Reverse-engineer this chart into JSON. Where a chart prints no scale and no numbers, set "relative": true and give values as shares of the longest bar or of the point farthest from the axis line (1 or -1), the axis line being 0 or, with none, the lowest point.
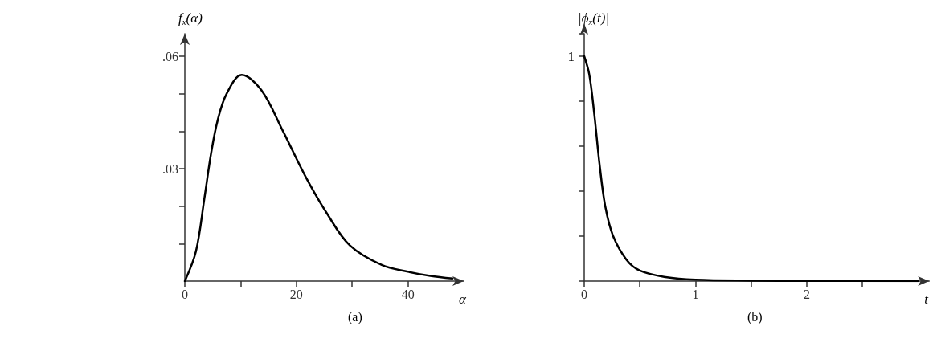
{
  "chart_data": [
    {
      "type": "line",
      "xlabel": "α",
      "ylabel": "f$_{x}$(α)",
      "annotations": [
        "(a)"
      ],
      "xlim": [
        0,
        50
      ],
      "ylim": [
        0,
        0.066
      ],
      "xticks": [
        0,
        {
          "value": 10,
          "label": null
        },
        20,
        {
          "value": 30,
          "label": null
        },
        40
      ],
      "yticks": [
        {
          "value": 0.01,
          "label": null
        },
        {
          "value": 0.02,
          "label": null
        },
        {
          "value": 0.03,
          "label": ".03"
        },
        {
          "value": 0.04,
          "label": null
        },
        {
          "value": 0.05,
          "label": null
        },
        {
          "value": 0.06,
          "label": ".06"
        }
      ],
      "grid": false,
      "marker": "none",
      "line_style": "solid",
      "series": [
        {
          "color": "#000000",
          "x": [
            0,
            2,
            3.5,
            4.7,
            5.9,
            7.5,
            10.2,
            13.7,
            17.6,
            21.6,
            25.5,
            29.6,
            35.3,
            40,
            44,
            48
          ],
          "values": [
            0,
            0.008,
            0.022,
            0.034,
            0.043,
            0.05,
            0.055,
            0.051,
            0.04,
            0.028,
            0.018,
            0.0095,
            0.0043,
            0.0025,
            0.0014,
            0.0007
          ]
        }
      ]
    },
    {
      "type": "line",
      "xlabel": "t",
      "ylabel": "|ϕ$_{x}$(t)|",
      "annotations": [
        "(b)",
        {
          "text": "1",
          "x": 0,
          "y": 1
        }
      ],
      "xlim": [
        0,
        3.1
      ],
      "relative": true,
      "xticks": [
        0,
        {
          "value": 0.5,
          "label": null
        },
        1,
        {
          "value": 1.5,
          "label": null
        },
        2,
        {
          "value": 2.5,
          "label": null
        }
      ],
      "grid": false,
      "marker": "none",
      "line_style": "solid",
      "series": [
        {
          "color": "#000000",
          "x": [
            0,
            0.045,
            0.09,
            0.14,
            0.19,
            0.26,
            0.38,
            0.5,
            0.73,
            1,
            1.5,
            2,
            3
          ],
          "values": [
            1,
            0.92,
            0.745,
            0.51,
            0.33,
            0.2,
            0.095,
            0.047,
            0.018,
            0.006,
            0.002,
            0.001,
            0
          ]
        }
      ]
    }
  ]
}
